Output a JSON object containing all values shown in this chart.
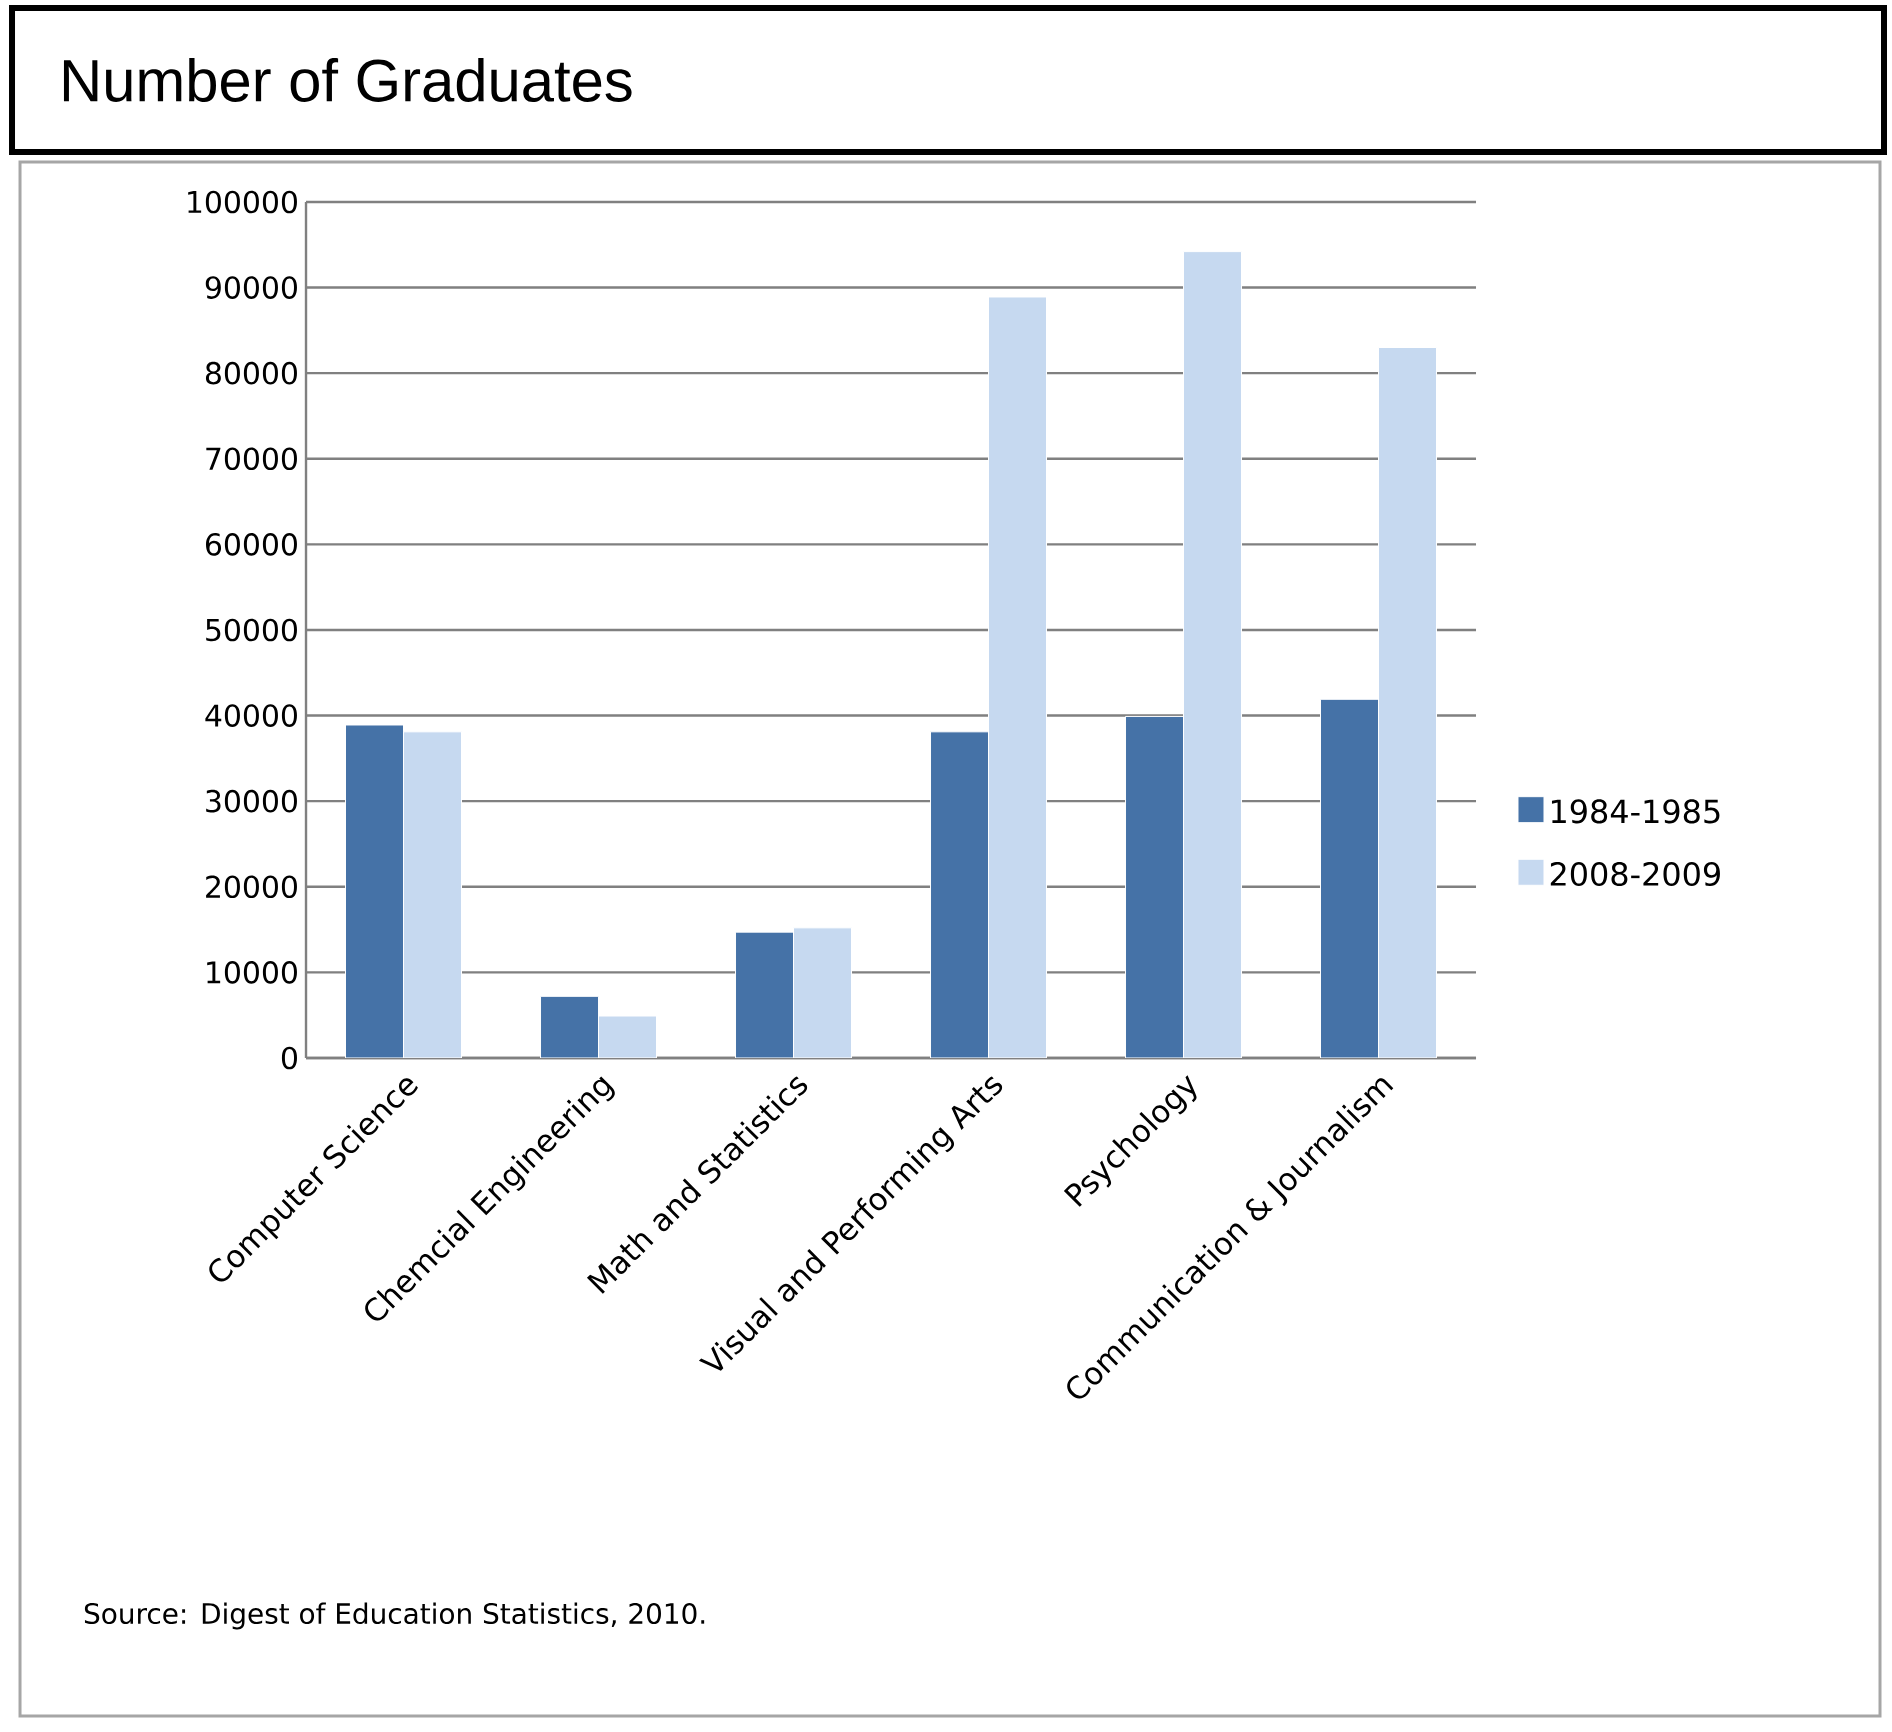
{
  "chart_data": {
    "type": "bar",
    "title": "Number of Graduates",
    "categories": [
      "Computer Science",
      "Chemcial Engineering",
      "Math and Statistics",
      "Visual and Performing Arts",
      "Psychology",
      "Communication & Journalism"
    ],
    "series": [
      {
        "name": "1984-1985",
        "color": "#4572a7",
        "values": [
          38900,
          7200,
          14700,
          38100,
          39900,
          41900
        ]
      },
      {
        "name": "2008-2009",
        "color": "#c6d9f0",
        "values": [
          38100,
          4900,
          15200,
          88900,
          94200,
          83000
        ]
      }
    ],
    "ylim": [
      0,
      100000
    ],
    "yticks": [
      0,
      10000,
      20000,
      30000,
      40000,
      50000,
      60000,
      70000,
      80000,
      90000,
      100000
    ],
    "grid": "y",
    "legend": "right",
    "annotations": [
      "Source: Digest of Education Statistics, 2010."
    ]
  }
}
